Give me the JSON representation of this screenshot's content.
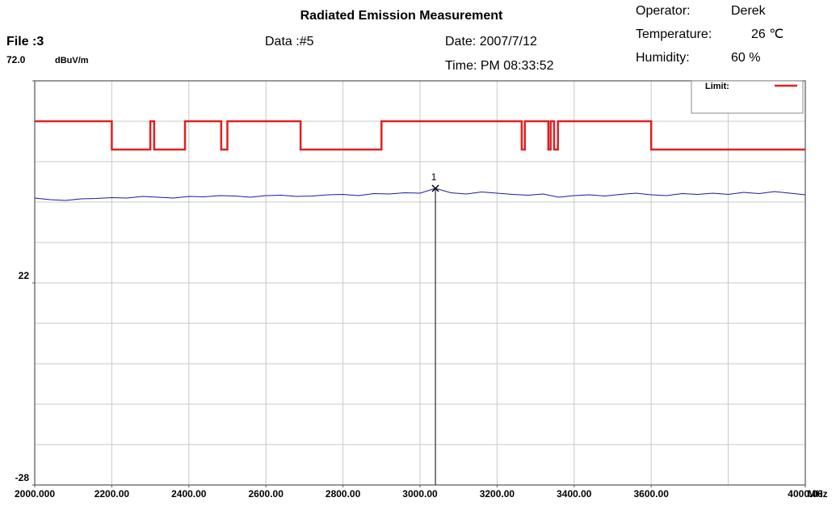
{
  "chart_data": {
    "type": "line",
    "title": "Radiated Emission Measurement",
    "file": "File :3",
    "data_no": "Data :#5",
    "date": "Date: 2007/7/12",
    "time": "Time: PM 08:33:52",
    "operator_label": "Operator:",
    "operator": "Derek",
    "temperature_label": "Temperature:",
    "temperature": "26 ℃",
    "humidity_label": "Humidity:",
    "humidity": "60 %",
    "y_unit": "dBuV/m",
    "x_unit": "MHz",
    "xlim": [
      2000,
      4000
    ],
    "xticks": [
      {
        "value": 2000,
        "label": "2000.000"
      },
      {
        "value": 2200,
        "label": "2200.00"
      },
      {
        "value": 2400,
        "label": "2400.00"
      },
      {
        "value": 2600,
        "label": "2600.00"
      },
      {
        "value": 2800,
        "label": "2800.00"
      },
      {
        "value": 3000,
        "label": "3000.00"
      },
      {
        "value": 3200,
        "label": "3200.00"
      },
      {
        "value": 3400,
        "label": "3400.00"
      },
      {
        "value": 3600,
        "label": "3600.00"
      },
      {
        "value": 4000,
        "label": "4000.00"
      }
    ],
    "xgrid": [
      2200,
      2400,
      2600,
      2800,
      3000,
      3200,
      3400,
      3600,
      3800
    ],
    "ylim": [
      -28,
      72
    ],
    "yticks": [
      {
        "value": 72,
        "label": "72.0"
      },
      22,
      -28
    ],
    "ygrid": [
      62,
      52,
      42,
      32,
      22,
      12,
      2,
      -8,
      -18
    ],
    "grid": true,
    "legend": "top-right",
    "series": [
      {
        "name": "Limit:",
        "color": "#e02020",
        "x": [
          2000,
          2200,
          2200,
          2300,
          2300,
          2310,
          2310,
          2390,
          2390,
          2484,
          2484,
          2500,
          2500,
          2690,
          2690,
          2900,
          2900,
          3264,
          3264,
          3272,
          3272,
          3333,
          3333,
          3339,
          3339,
          3348,
          3348,
          3358,
          3358,
          3600,
          3600,
          4000
        ],
        "values": [
          62,
          62,
          55,
          55,
          62,
          62,
          55,
          55,
          62,
          62,
          55,
          55,
          62,
          62,
          55,
          55,
          62,
          62,
          55,
          55,
          62,
          62,
          55,
          55,
          62,
          62,
          55,
          55,
          62,
          62,
          55,
          55
        ]
      },
      {
        "color": "#1a1aa0",
        "x": [
          2000,
          2040,
          2080,
          2120,
          2160,
          2200,
          2240,
          2280,
          2320,
          2360,
          2400,
          2440,
          2480,
          2520,
          2560,
          2600,
          2640,
          2680,
          2720,
          2760,
          2800,
          2840,
          2880,
          2920,
          2960,
          3000,
          3040,
          3080,
          3120,
          3160,
          3200,
          3240,
          3280,
          3320,
          3360,
          3400,
          3440,
          3480,
          3520,
          3560,
          3600,
          3640,
          3680,
          3720,
          3760,
          3800,
          3840,
          3880,
          3920,
          3960,
          4000
        ],
        "values": [
          43.0,
          42.6,
          42.4,
          42.8,
          42.9,
          43.1,
          43.0,
          43.4,
          43.2,
          43.0,
          43.4,
          43.3,
          43.6,
          43.5,
          43.2,
          43.6,
          43.7,
          43.4,
          43.5,
          43.8,
          43.9,
          43.6,
          44.1,
          44.0,
          44.3,
          44.2,
          45.4,
          44.3,
          44.0,
          44.5,
          44.2,
          43.9,
          43.7,
          44.0,
          43.2,
          43.6,
          43.8,
          43.5,
          43.9,
          44.2,
          43.8,
          43.6,
          44.1,
          43.9,
          44.2,
          43.9,
          44.4,
          44.1,
          44.6,
          44.2,
          43.8
        ]
      }
    ],
    "marker": {
      "label": "1",
      "x": 3040,
      "value": 45.4
    }
  }
}
